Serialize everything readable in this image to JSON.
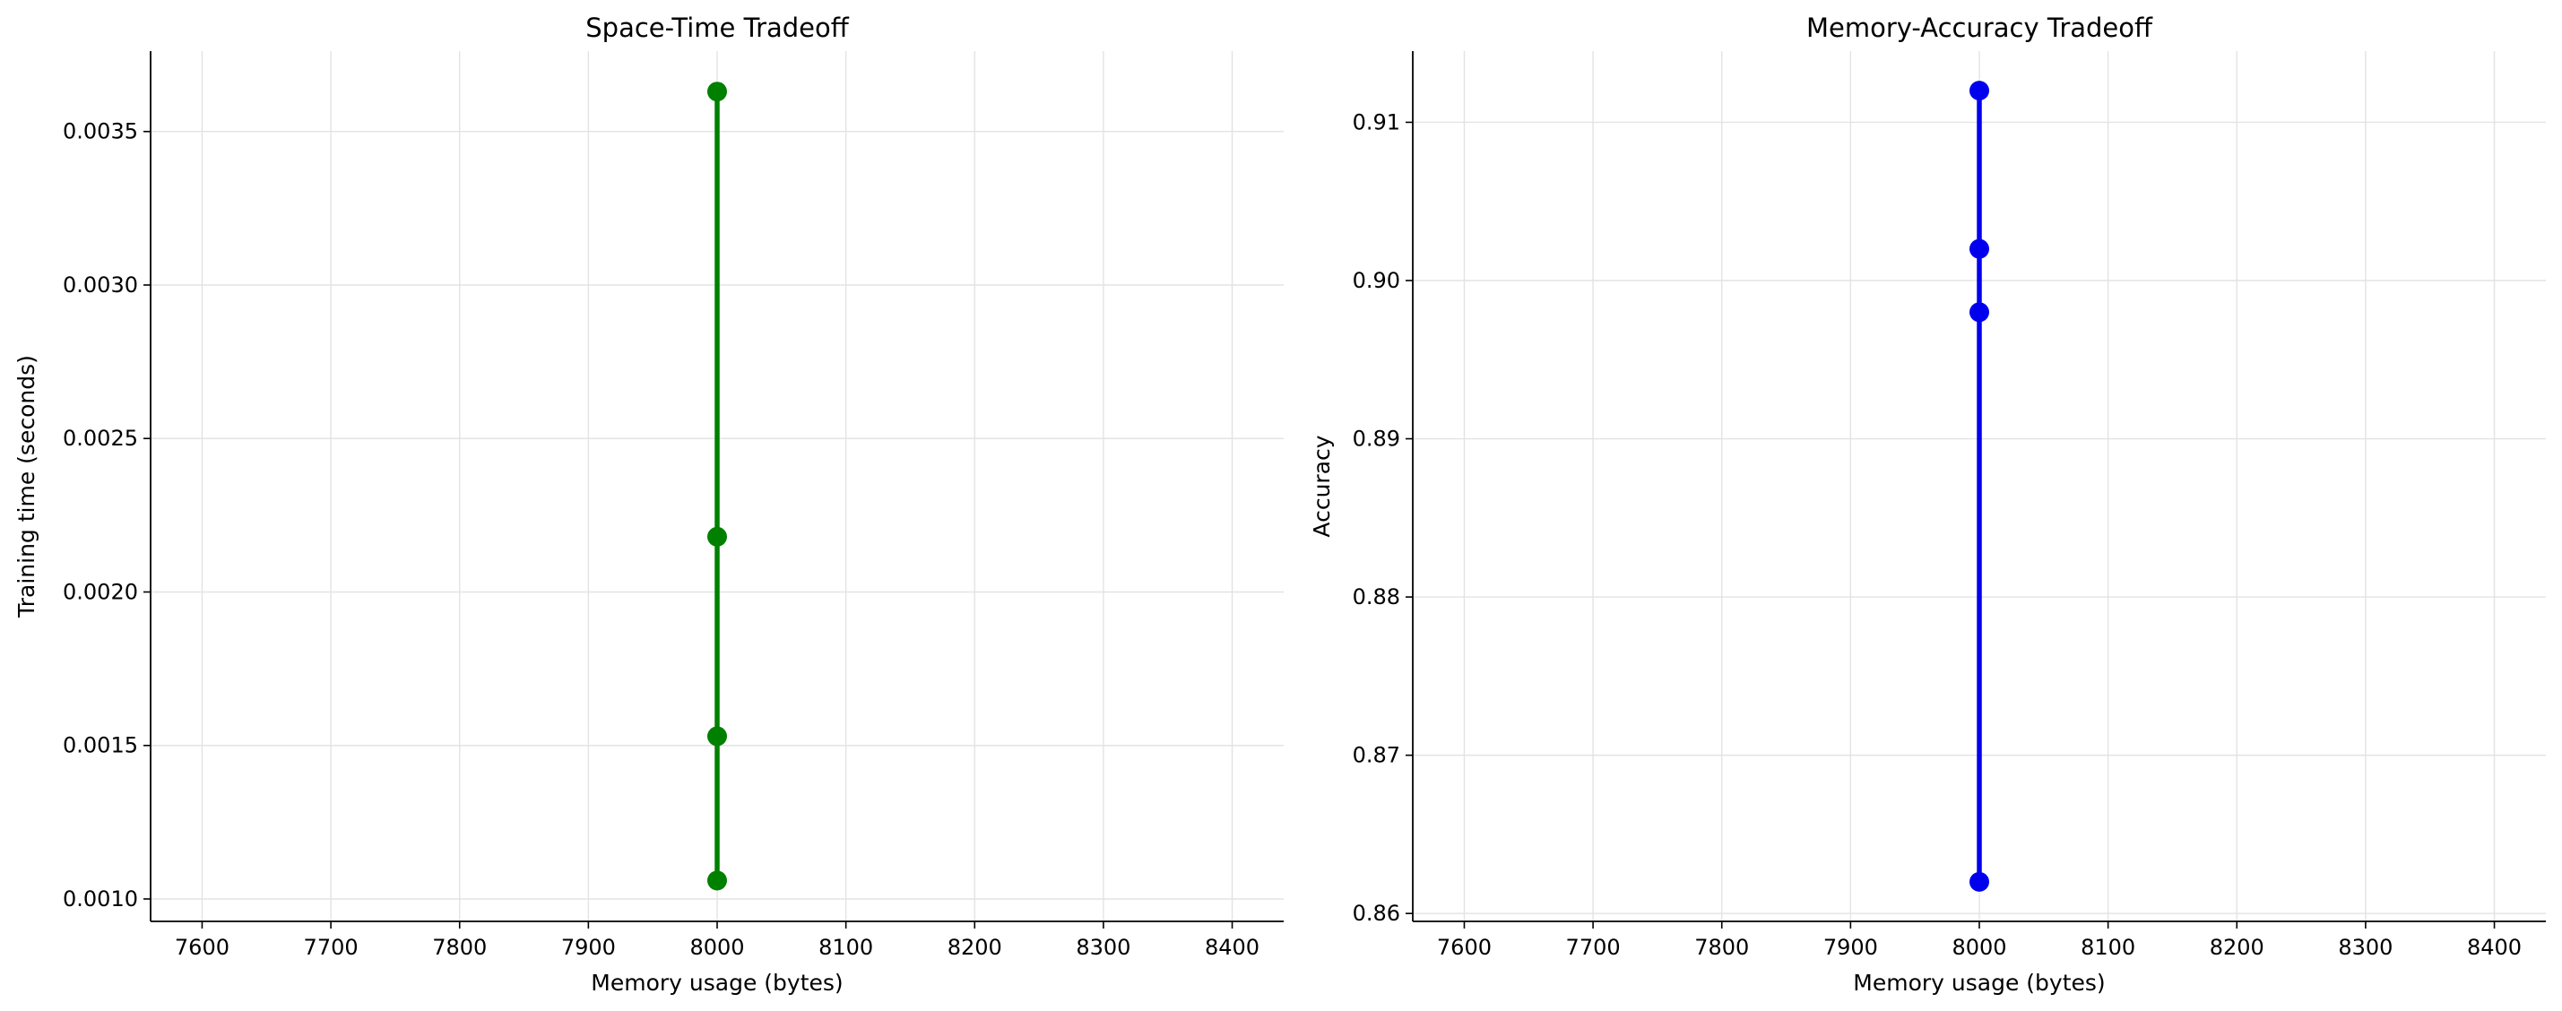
{
  "chart_data": [
    {
      "type": "line",
      "title": "Space-Time Tradeoff",
      "xlabel": "Memory usage (bytes)",
      "ylabel": "Training time (seconds)",
      "xlim": [
        7560,
        8440
      ],
      "ylim": [
        0.000927,
        0.003762
      ],
      "xticks": [
        7600,
        7700,
        7800,
        7900,
        8000,
        8100,
        8200,
        8300,
        8400
      ],
      "xtick_labels": [
        "7600",
        "7700",
        "7800",
        "7900",
        "8000",
        "8100",
        "8200",
        "8300",
        "8400"
      ],
      "yticks": [
        0.001,
        0.0015,
        0.002,
        0.0025,
        0.003,
        0.0035
      ],
      "ytick_labels": [
        "0.0010",
        "0.0015",
        "0.0020",
        "0.0025",
        "0.0030",
        "0.0035"
      ],
      "grid": true,
      "color": "#008000",
      "series": [
        {
          "x": [
            8000,
            8000,
            8000,
            8000
          ],
          "y": [
            0.00106,
            0.00153,
            0.00218,
            0.00363
          ]
        }
      ]
    },
    {
      "type": "line",
      "title": "Memory-Accuracy Tradeoff",
      "xlabel": "Memory usage (bytes)",
      "ylabel": "Accuracy",
      "xlim": [
        7560,
        8440
      ],
      "ylim": [
        0.8595,
        0.9145
      ],
      "xticks": [
        7600,
        7700,
        7800,
        7900,
        8000,
        8100,
        8200,
        8300,
        8400
      ],
      "xtick_labels": [
        "7600",
        "7700",
        "7800",
        "7900",
        "8000",
        "8100",
        "8200",
        "8300",
        "8400"
      ],
      "yticks": [
        0.86,
        0.87,
        0.88,
        0.89,
        0.9,
        0.91
      ],
      "ytick_labels": [
        "0.86",
        "0.87",
        "0.88",
        "0.89",
        "0.90",
        "0.91"
      ],
      "grid": true,
      "color": "#0000ee",
      "series": [
        {
          "x": [
            8000,
            8000,
            8000,
            8000
          ],
          "y": [
            0.862,
            0.898,
            0.902,
            0.912
          ]
        }
      ]
    }
  ]
}
